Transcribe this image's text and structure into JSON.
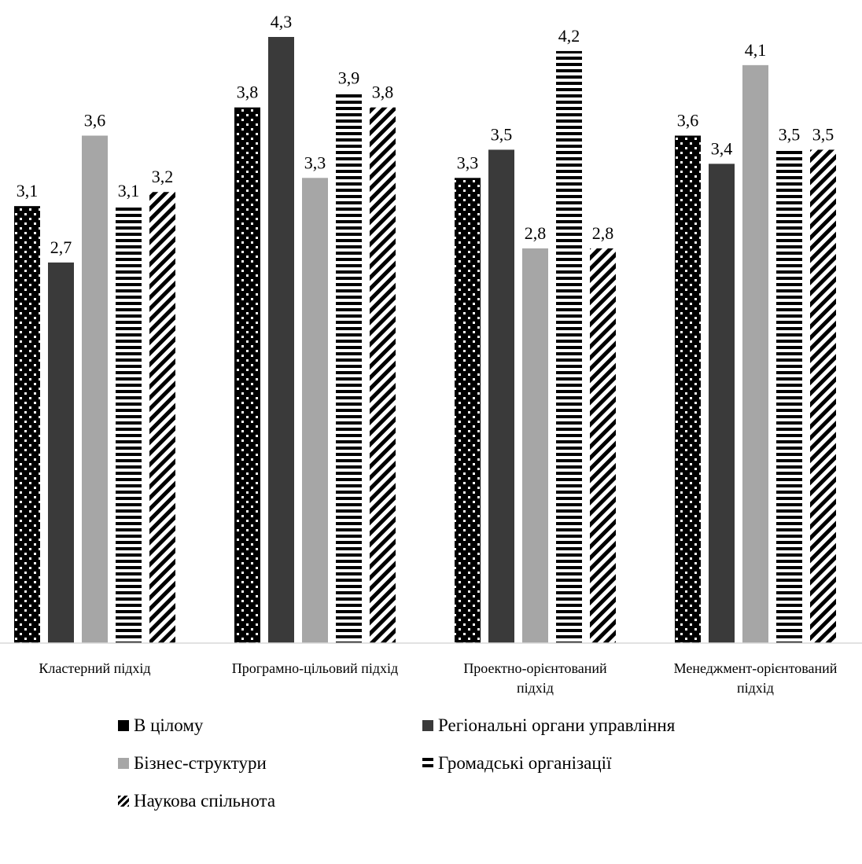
{
  "chart_data": {
    "type": "bar",
    "categories": [
      [
        "Кластерний підхід"
      ],
      [
        "Програмно-цільовий підхід"
      ],
      [
        "Проектно-орієнтований",
        "підхід"
      ],
      [
        "Менеджмент-орієнтований",
        "підхід"
      ]
    ],
    "series": [
      {
        "name": "В цілому",
        "values": [
          3.1,
          3.8,
          3.3,
          3.6
        ],
        "labels": [
          "3,1",
          "3,8",
          "3,3",
          "3,6"
        ],
        "pattern": "dots",
        "color": "#000000"
      },
      {
        "name": "Регіональні органи управління",
        "values": [
          2.7,
          4.3,
          3.5,
          3.4
        ],
        "labels": [
          "2,7",
          "4,3",
          "3,5",
          "3,4"
        ],
        "pattern": "solid",
        "color": "#3a3a3a"
      },
      {
        "name": "Бізнес-структури",
        "values": [
          3.6,
          3.3,
          2.8,
          4.1
        ],
        "labels": [
          "3,6",
          "3,3",
          "2,8",
          "4,1"
        ],
        "pattern": "solid",
        "color": "#a6a6a6"
      },
      {
        "name": "Громадські організації",
        "values": [
          3.1,
          3.9,
          4.2,
          3.5
        ],
        "labels": [
          "3,1",
          "3,9",
          "4,2",
          "3,5"
        ],
        "pattern": "hstripes",
        "color": "#000000"
      },
      {
        "name": "Наукова спільнота",
        "values": [
          3.2,
          3.8,
          2.8,
          3.5
        ],
        "labels": [
          "3,2",
          "3,8",
          "2,8",
          "3,5"
        ],
        "pattern": "diagonal",
        "color": "#000000"
      }
    ],
    "ylim": [
      0,
      4.3
    ],
    "grid": false,
    "legend_position": "bottom"
  }
}
